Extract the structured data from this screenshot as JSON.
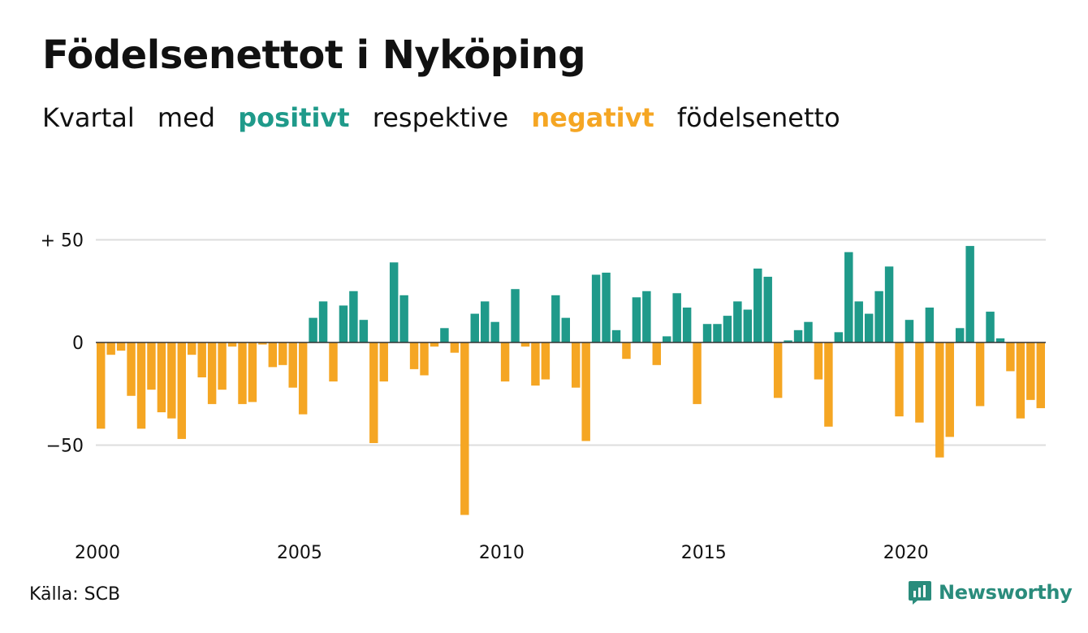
{
  "title": "Födelsenettot i Nyköping",
  "subtitle": {
    "w1": "Kvartal",
    "w2": "med",
    "positive": "positivt",
    "w3": "respektive",
    "negative": "negativt",
    "w4": "födelsenetto"
  },
  "colors": {
    "positive": "#1f9a8a",
    "negative": "#f5a623",
    "grid": "#dddddd",
    "axis": "#333333"
  },
  "source": "Källa: SCB",
  "brand": {
    "name": "Newsworthy",
    "icon": "newsworthy-logo-icon"
  },
  "chart_data": {
    "type": "bar",
    "x_start": "2000 Q1",
    "ylim": [
      -90,
      60
    ],
    "yticks": [
      {
        "value": 50,
        "label": "+ 50"
      },
      {
        "value": 0,
        "label": "0"
      },
      {
        "value": -50,
        "label": "−50"
      }
    ],
    "xticks": [
      "2000",
      "2005",
      "2010",
      "2015",
      "2020"
    ],
    "grid": true,
    "values": [
      -42,
      -6,
      -4,
      -26,
      -42,
      -23,
      -34,
      -37,
      -47,
      -6,
      -17,
      -30,
      -23,
      -2,
      -30,
      -29,
      -1,
      -12,
      -11,
      -22,
      -35,
      12,
      20,
      -19,
      18,
      25,
      11,
      -49,
      -19,
      39,
      23,
      -13,
      -16,
      -2,
      7,
      -5,
      -84,
      14,
      20,
      10,
      -19,
      26,
      -2,
      -21,
      -18,
      23,
      12,
      -22,
      -48,
      33,
      34,
      6,
      -8,
      22,
      25,
      -11,
      3,
      24,
      17,
      -30,
      9,
      9,
      13,
      20,
      16,
      36,
      32,
      -27,
      1,
      6,
      10,
      -18,
      -41,
      5,
      44,
      20,
      14,
      25,
      37,
      -36,
      11,
      -39,
      17,
      -56,
      -46,
      7,
      47,
      -31,
      15,
      2,
      -14,
      -37,
      -28,
      -32
    ]
  }
}
